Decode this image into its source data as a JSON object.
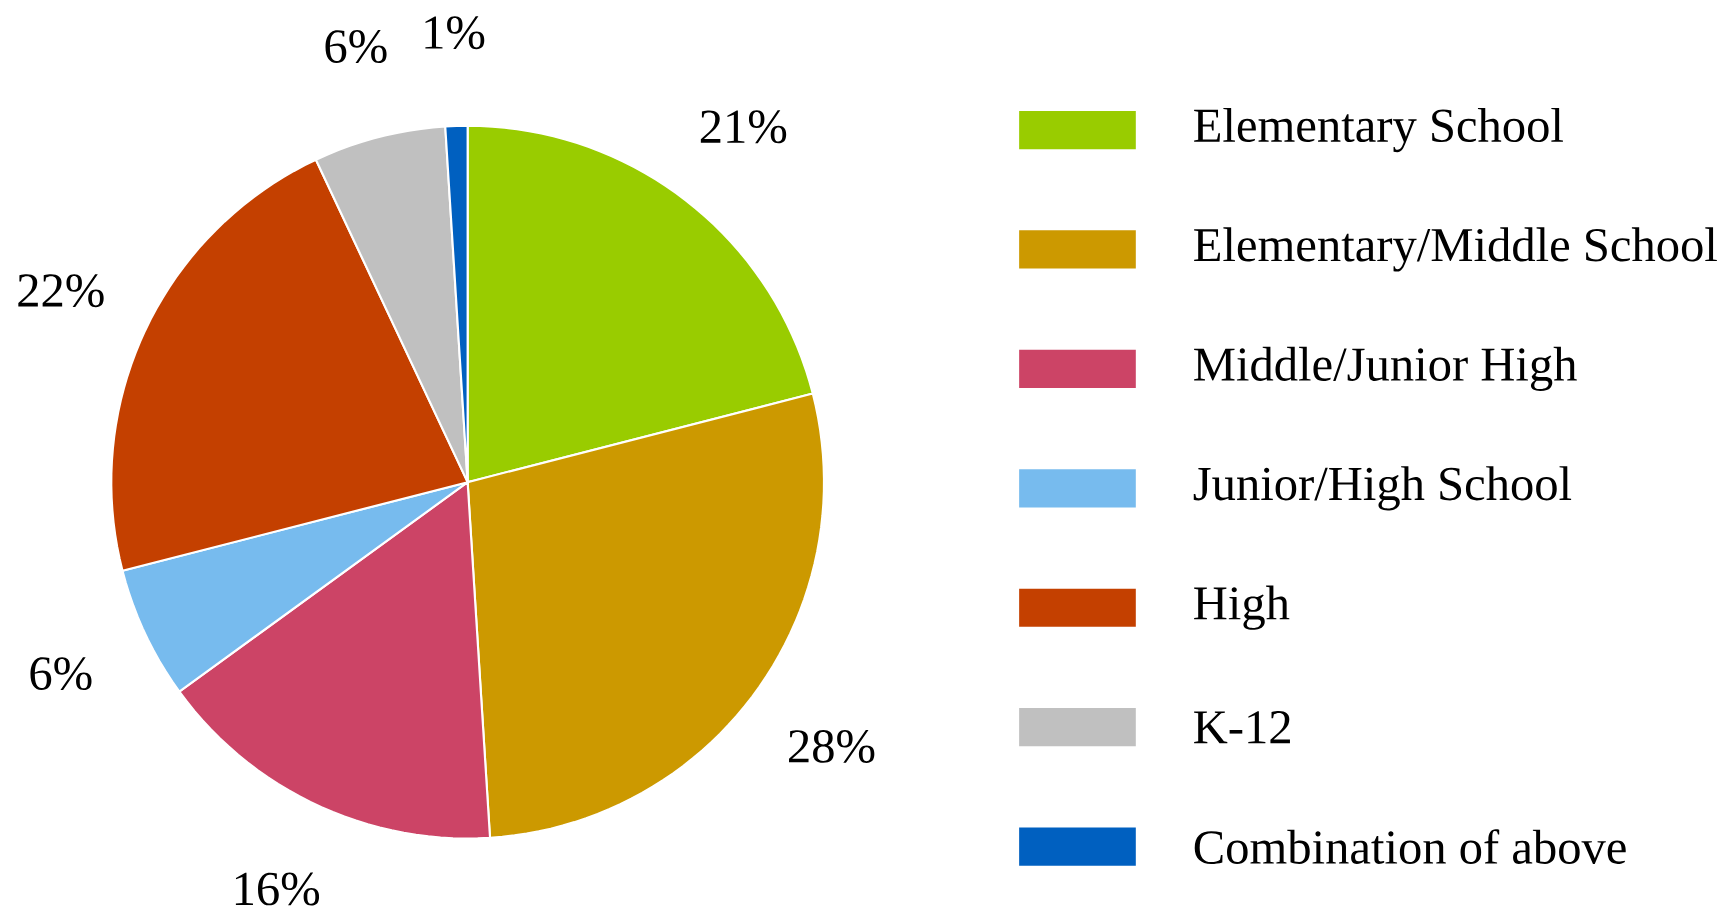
{
  "chart_data": {
    "type": "pie",
    "categories": [
      "Elementary School",
      "Elementary/Middle School",
      "Middle/Junior High",
      "Junior/High School",
      "High",
      "K-12",
      "Combination of above"
    ],
    "values": [
      21,
      28,
      16,
      6,
      22,
      6,
      1
    ],
    "value_labels": [
      "21%",
      "28%",
      "16%",
      "6%",
      "22%",
      "6%",
      "1%"
    ],
    "colors": [
      "#99cc00",
      "#cc9900",
      "#cc4466",
      "#77bbee",
      "#c44000",
      "#c0c0c0",
      "#0060c0"
    ],
    "legend": "right"
  }
}
